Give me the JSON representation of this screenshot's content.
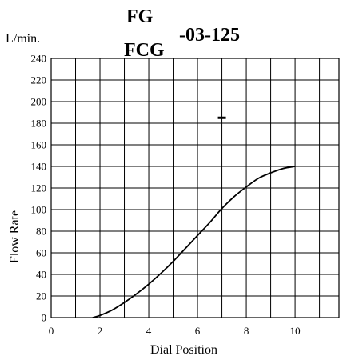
{
  "chart_data": {
    "type": "line",
    "title_lines": [
      "FG",
      "FCG"
    ],
    "title_suffix": "-03-125",
    "unit_label": "L/min.",
    "xlabel": "Dial Position",
    "ylabel": "Flow Rate",
    "xlim": [
      0,
      11.8
    ],
    "ylim": [
      0,
      240
    ],
    "x_ticks": [
      "0",
      "2",
      "4",
      "6",
      "8",
      "10"
    ],
    "y_ticks": [
      "0",
      "20",
      "40",
      "60",
      "80",
      "100",
      "120",
      "140",
      "160",
      "180",
      "200",
      "220",
      "240"
    ],
    "grid": true,
    "series": [
      {
        "x": [
          1.7,
          2.0,
          2.5,
          3.0,
          3.5,
          4.0,
          4.5,
          5.0,
          5.5,
          6.0,
          6.5,
          7.0,
          7.5,
          8.0,
          8.5,
          9.0,
          9.5,
          10.0
        ],
        "y": [
          0,
          2,
          7,
          14,
          22,
          31,
          41,
          52,
          64,
          76,
          88,
          101,
          112,
          121,
          129,
          134,
          138,
          140
        ]
      }
    ],
    "markers": [
      {
        "x": 7.0,
        "y": 185
      }
    ]
  }
}
